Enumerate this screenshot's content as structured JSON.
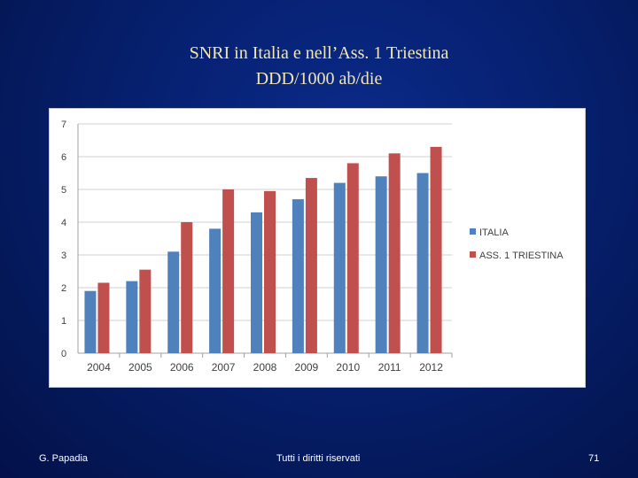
{
  "slide": {
    "title_line1": "SNRI in Italia e nell’Ass. 1 Triestina",
    "title_line2": "DDD/1000 ab/die",
    "footer_author": "G. Papadia",
    "footer_rights": "Tutti i diritti riservati",
    "page_number": "71"
  },
  "colors": {
    "italia": "#4f81bd",
    "triestina": "#c0504d"
  },
  "chart_data": {
    "type": "bar",
    "title": "",
    "xlabel": "",
    "ylabel": "",
    "ylim": [
      0,
      7
    ],
    "yticks": [
      "0",
      "1",
      "2",
      "3",
      "4",
      "5",
      "6",
      "7"
    ],
    "grid": true,
    "legend": "right",
    "categories": [
      "2004",
      "2005",
      "2006",
      "2007",
      "2008",
      "2009",
      "2010",
      "2011",
      "2012"
    ],
    "series": [
      {
        "name": "ITALIA",
        "values": [
          1.9,
          2.2,
          3.1,
          3.8,
          4.3,
          4.7,
          5.2,
          5.4,
          5.5
        ]
      },
      {
        "name": "ASS. 1 TRIESTINA",
        "values": [
          2.15,
          2.55,
          4.0,
          5.0,
          4.95,
          5.35,
          5.8,
          6.1,
          6.3
        ]
      }
    ]
  }
}
